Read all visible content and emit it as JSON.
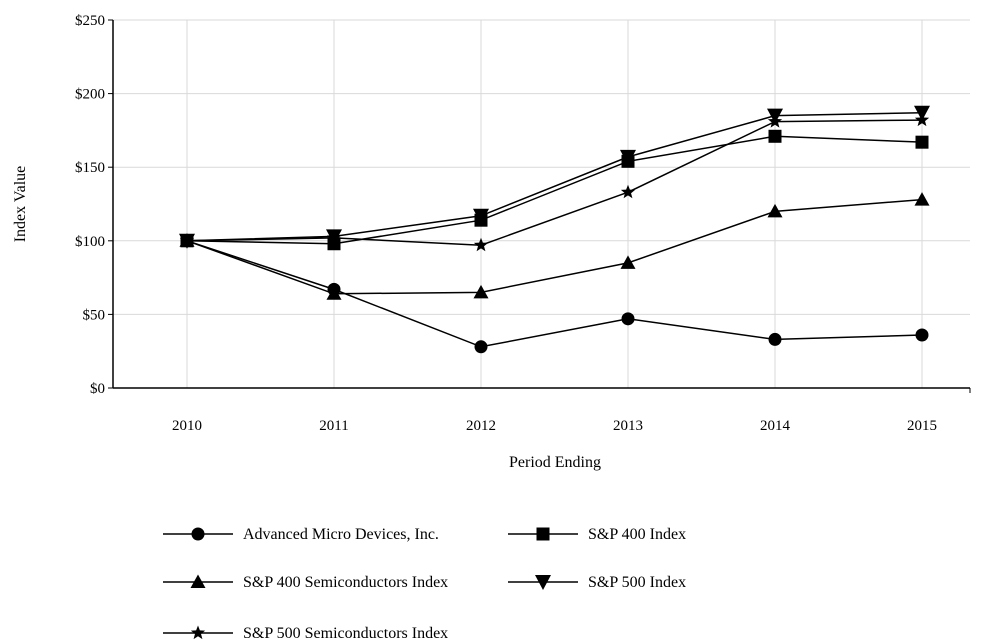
{
  "chart_data": {
    "type": "line",
    "title": "",
    "xlabel": "Period Ending",
    "ylabel": "Index Value",
    "ylim": [
      0,
      250
    ],
    "yticks": [
      0,
      50,
      100,
      150,
      200,
      250
    ],
    "ytick_labels": [
      "$0",
      "$50",
      "$100",
      "$150",
      "$200",
      "$250"
    ],
    "x": [
      "2010",
      "2011",
      "2012",
      "2013",
      "2014",
      "2015"
    ],
    "grid": true,
    "legend_position": "bottom",
    "series": [
      {
        "name": "Advanced Micro Devices, Inc.",
        "marker": "circle",
        "values": [
          100,
          67,
          28,
          47,
          33,
          36
        ]
      },
      {
        "name": "S&P 400 Index",
        "marker": "square",
        "values": [
          100,
          98,
          114,
          154,
          171,
          167
        ]
      },
      {
        "name": "S&P 400 Semiconductors Index",
        "marker": "triangle-up",
        "values": [
          100,
          64,
          65,
          85,
          120,
          128
        ]
      },
      {
        "name": "S&P 500 Index",
        "marker": "triangle-down",
        "values": [
          100,
          103,
          117,
          157,
          185,
          187
        ]
      },
      {
        "name": "S&P 500 Semiconductors Index",
        "marker": "star",
        "values": [
          100,
          102,
          97,
          133,
          181,
          182
        ]
      }
    ]
  }
}
